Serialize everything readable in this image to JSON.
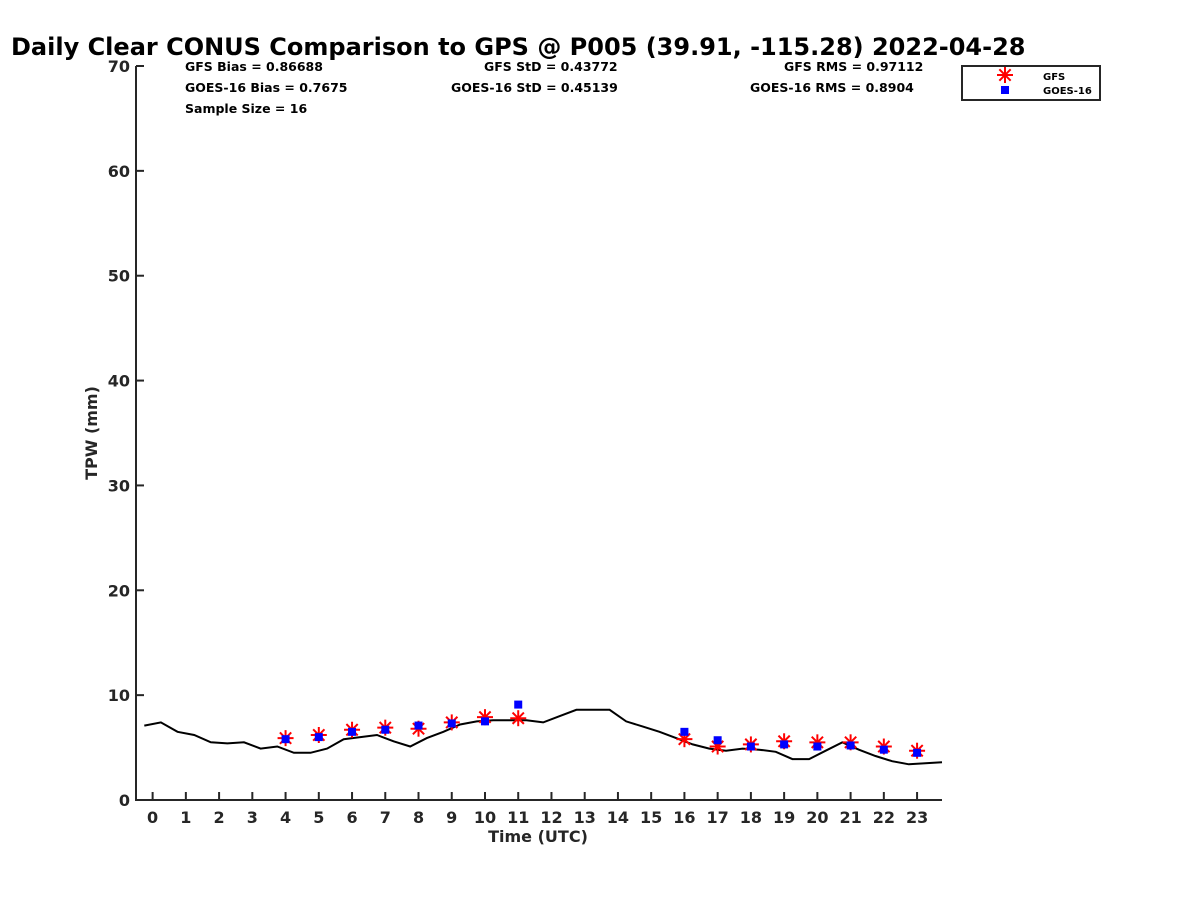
{
  "chart_data": {
    "type": "scatter",
    "title": "Daily Clear CONUS Comparison to GPS @ P005 (39.91, -115.28) 2022-04-28",
    "xlabel": "Time (UTC)",
    "ylabel": "TPW (mm)",
    "xlim": [
      -0.5,
      23.75
    ],
    "ylim": [
      0,
      70
    ],
    "x_ticks": [
      0,
      1,
      2,
      3,
      4,
      5,
      6,
      7,
      8,
      9,
      10,
      11,
      12,
      13,
      14,
      15,
      16,
      17,
      18,
      19,
      20,
      21,
      22,
      23
    ],
    "y_ticks": [
      0,
      10,
      20,
      30,
      40,
      50,
      60,
      70
    ],
    "legend_position": "top-right",
    "stats": {
      "gfs_bias": "GFS Bias = 0.86688",
      "goes_bias": "GOES-16 Bias = 0.7675",
      "sample_size": "Sample Size = 16",
      "gfs_std": "GFS StD = 0.43772",
      "goes_std": "GOES-16 StD = 0.45139",
      "gfs_rms": "GFS RMS = 0.97112",
      "goes_rms": "GOES-16 RMS = 0.8904"
    },
    "series": [
      {
        "name": "GFS",
        "marker": "star",
        "color": "#ff0000",
        "x": [
          4,
          5,
          6,
          7,
          8,
          9,
          10,
          11,
          16,
          17,
          18,
          19,
          20,
          21,
          22,
          23
        ],
        "y": [
          5.9,
          6.2,
          6.7,
          6.9,
          6.8,
          7.4,
          7.9,
          7.8,
          5.8,
          5.1,
          5.3,
          5.6,
          5.5,
          5.5,
          5.1,
          4.7
        ]
      },
      {
        "name": "GOES-16",
        "marker": "square",
        "color": "#0000ff",
        "x": [
          4,
          5,
          6,
          7,
          8,
          9,
          10,
          11,
          16,
          17,
          18,
          19,
          20,
          21,
          22,
          23
        ],
        "y": [
          5.8,
          6.0,
          6.5,
          6.7,
          7.1,
          7.3,
          7.5,
          9.1,
          6.5,
          5.7,
          5.1,
          5.3,
          5.1,
          5.2,
          4.8,
          4.5
        ]
      },
      {
        "name": "",
        "marker": "line",
        "color": "#000000",
        "x": [
          -0.25,
          0.25,
          0.75,
          1.25,
          1.75,
          2.25,
          2.75,
          3.25,
          3.75,
          4.25,
          4.75,
          5.25,
          5.75,
          6.25,
          6.75,
          7.25,
          7.75,
          8.25,
          8.75,
          9.25,
          9.75,
          10.25,
          10.75,
          11.25,
          11.75,
          12.25,
          12.75,
          13.25,
          13.75,
          14.25,
          14.75,
          15.25,
          15.75,
          16.25,
          16.75,
          17.25,
          17.75,
          18.25,
          18.75,
          19.25,
          19.75,
          20.25,
          20.75,
          21.25,
          21.75,
          22.25,
          22.75,
          23.25,
          23.75
        ],
        "y": [
          7.1,
          7.4,
          6.5,
          6.2,
          5.5,
          5.4,
          5.5,
          4.9,
          5.1,
          4.5,
          4.5,
          4.9,
          5.8,
          6.0,
          6.2,
          5.6,
          5.1,
          5.9,
          6.5,
          7.2,
          7.5,
          7.6,
          7.6,
          7.6,
          7.4,
          8.0,
          8.6,
          8.6,
          8.6,
          7.5,
          7.0,
          6.5,
          5.9,
          5.3,
          4.9,
          4.7,
          4.9,
          4.8,
          4.6,
          3.9,
          3.9,
          4.7,
          5.5,
          4.8,
          4.2,
          3.7,
          3.4,
          3.5,
          3.6
        ]
      }
    ]
  }
}
